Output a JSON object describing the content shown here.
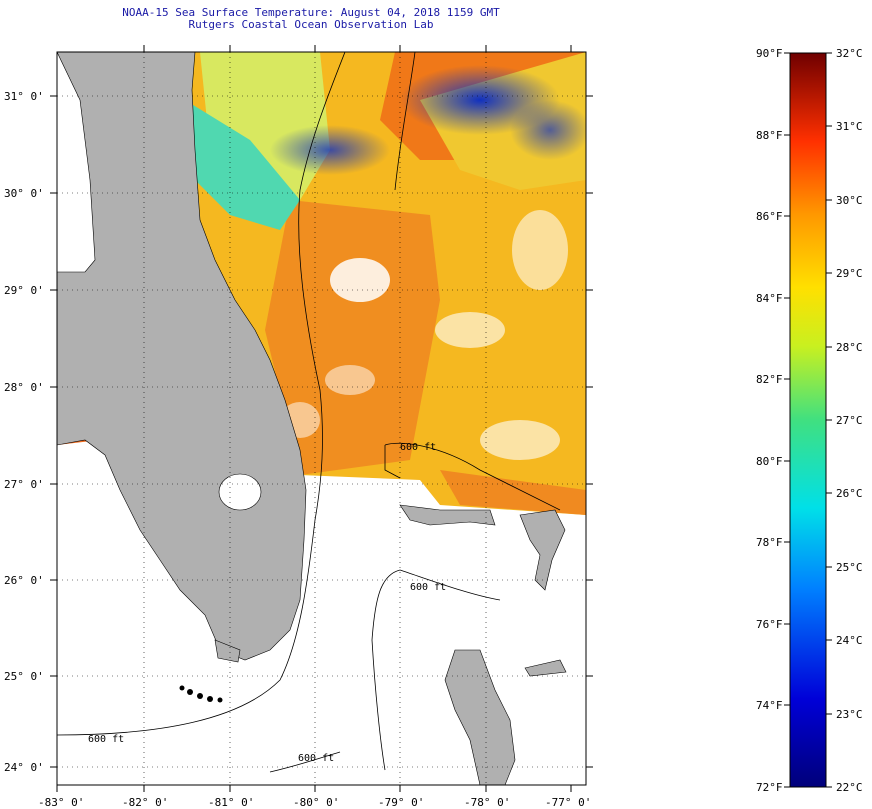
{
  "header": {
    "title": "NOAA-15 Sea Surface Temperature:  August 04, 2018 1159 GMT",
    "subtitle": "Rutgers Coastal Ocean Observation Lab"
  },
  "map": {
    "longitude_labels": [
      "-83° 0'",
      "-82° 0'",
      "-81° 0'",
      "-80° 0'",
      "-79° 0'",
      "-78° 0'",
      "-77° 0'"
    ],
    "latitude_labels": [
      "31° 0'",
      "30° 0'",
      "29° 0'",
      "28° 0'",
      "27° 0'",
      "26° 0'",
      "25° 0'",
      "24° 0'"
    ],
    "contour_label": "600 ft",
    "colors": {
      "land": "#b0b0b0",
      "nodata": "#ffffff",
      "warm": "#f07a10",
      "mid": "#f5c020",
      "cool": "#3fd0b0",
      "cold": "#0a1fa0"
    }
  },
  "colorbar": {
    "fahrenheit_labels": [
      "90°F",
      "88°F",
      "86°F",
      "84°F",
      "82°F",
      "80°F",
      "78°F",
      "76°F",
      "74°F",
      "72°F"
    ],
    "celsius_labels": [
      "32°C",
      "31°C",
      "30°C",
      "29°C",
      "28°C",
      "27°C",
      "26°C",
      "25°C",
      "24°C",
      "23°C",
      "22°C"
    ],
    "range_f": [
      72,
      90
    ],
    "range_c": [
      22,
      32
    ]
  }
}
